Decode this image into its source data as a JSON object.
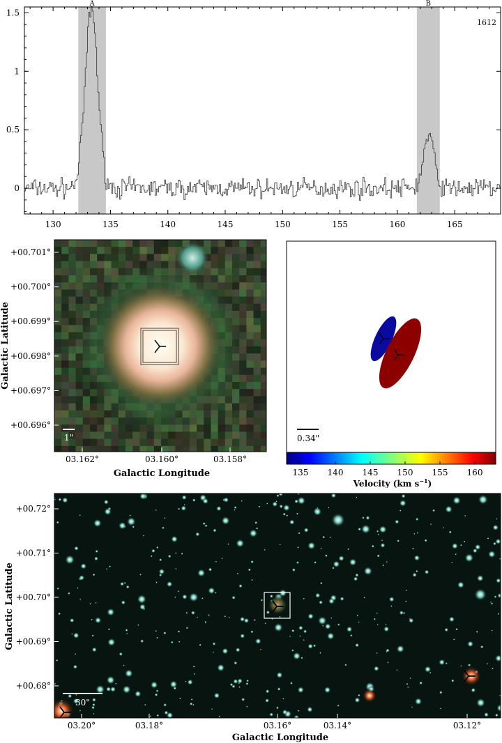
{
  "chart_data": [
    {
      "type": "line",
      "panel": "spectrum",
      "line_label": "1612",
      "xlim": [
        127.5,
        169
      ],
      "ylim": [
        -0.22,
        1.55
      ],
      "xticks": [
        130,
        135,
        140,
        145,
        150,
        155,
        160,
        165
      ],
      "yticks": [
        0,
        0.5,
        1,
        1.5
      ],
      "ytick_labels": [
        "0",
        "0.5",
        "1",
        "1.5"
      ],
      "bands": [
        {
          "label": "A",
          "x0": 132.2,
          "x1": 134.6
        },
        {
          "label": "B",
          "x0": 161.7,
          "x1": 163.7
        }
      ],
      "features": [
        {
          "label": "A",
          "center": 133.3,
          "peak": 1.53,
          "width": 0.55
        },
        {
          "label": "B",
          "center": 162.7,
          "peak": 0.45,
          "width": 0.45
        }
      ],
      "noise_rms": 0.05,
      "style": "step"
    },
    {
      "type": "scatter",
      "panel": "cutout",
      "xlabel": "Galactic Longitude",
      "ylabel": "Galactic Latitude",
      "xticks": [
        "03.162°",
        "03.160°",
        "03.158°"
      ],
      "yticks": [
        "+00.701°",
        "+00.700°",
        "+00.699°",
        "+00.698°",
        "+00.697°",
        "+00.696°"
      ],
      "scalebar": "1\"",
      "marker": {
        "l": 3.1597,
        "b": 0.69825
      }
    },
    {
      "type": "scatter",
      "panel": "velocity-map",
      "scalebar": "0.34\"",
      "colorbar": {
        "label": "Velocity (km s",
        "label_sup": "−1",
        "label_end": ")",
        "range": [
          133,
          163
        ],
        "ticks": [
          135,
          140,
          145,
          150,
          155,
          160
        ]
      },
      "components": [
        {
          "label": "A",
          "velocity": 133.3,
          "color": "#0a0aa0"
        },
        {
          "label": "B",
          "velocity": 162.7,
          "color": "#8c0000"
        }
      ]
    },
    {
      "type": "scatter",
      "panel": "field",
      "xlabel": "Galactic Longitude",
      "ylabel": "Galactic Latitude",
      "xticks": [
        "03.20°",
        "03.18°",
        "03.16°",
        "03.14°",
        "03.12°"
      ],
      "yticks": [
        "+00.72°",
        "+00.71°",
        "+00.70°",
        "+00.69°",
        "+00.68°"
      ],
      "scalebar": "30\""
    }
  ]
}
